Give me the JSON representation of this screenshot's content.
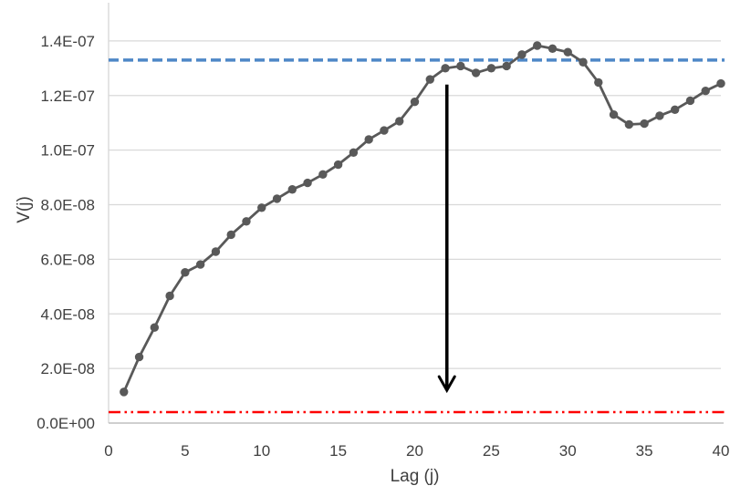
{
  "chart_data": {
    "type": "line",
    "title": "",
    "xlabel": "Lag (j)",
    "ylabel": "V(j)",
    "x": [
      1,
      2,
      3,
      4,
      5,
      6,
      7,
      8,
      9,
      10,
      11,
      12,
      13,
      14,
      15,
      16,
      17,
      18,
      19,
      20,
      21,
      22,
      23,
      24,
      25,
      26,
      27,
      28,
      29,
      30,
      31,
      32,
      33,
      34,
      35,
      36,
      37,
      38,
      39,
      40
    ],
    "series": [
      {
        "name": "V(j)",
        "marker": "circle",
        "color": "#595959",
        "values": [
          1.14e-08,
          2.42e-08,
          3.5e-08,
          4.66e-08,
          5.52e-08,
          5.81e-08,
          6.28e-08,
          6.9e-08,
          7.39e-08,
          7.89e-08,
          8.22e-08,
          8.56e-08,
          8.8e-08,
          9.11e-08,
          9.47e-08,
          9.91e-08,
          1.039e-07,
          1.072e-07,
          1.106e-07,
          1.177e-07,
          1.259e-07,
          1.3e-07,
          1.308e-07,
          1.283e-07,
          1.3e-07,
          1.308e-07,
          1.35e-07,
          1.383e-07,
          1.372e-07,
          1.359e-07,
          1.322e-07,
          1.248e-07,
          1.13e-07,
          1.094e-07,
          1.097e-07,
          1.126e-07,
          1.148e-07,
          1.181e-07,
          1.217e-07,
          1.244e-07
        ]
      }
    ],
    "xlim": [
      0,
      40
    ],
    "ylim": [
      0,
      1.54e-07
    ],
    "xticks": [
      {
        "value": 0,
        "label": "0"
      },
      {
        "value": 5,
        "label": "5"
      },
      {
        "value": 10,
        "label": "10"
      },
      {
        "value": 15,
        "label": "15"
      },
      {
        "value": 20,
        "label": "20"
      },
      {
        "value": 25,
        "label": "25"
      },
      {
        "value": 30,
        "label": "30"
      },
      {
        "value": 35,
        "label": "35"
      },
      {
        "value": 40,
        "label": "40"
      }
    ],
    "yticks": [
      {
        "value": 0,
        "label": "0.0E+00"
      },
      {
        "value": 2e-08,
        "label": "2.0E-08"
      },
      {
        "value": 4e-08,
        "label": "4.0E-08"
      },
      {
        "value": 6e-08,
        "label": "6.0E-08"
      },
      {
        "value": 8e-08,
        "label": "8.0E-08"
      },
      {
        "value": 1e-07,
        "label": "1.0E-07"
      },
      {
        "value": 1.2e-07,
        "label": "1.2E-07"
      },
      {
        "value": 1.4e-07,
        "label": "1.4E-07"
      }
    ],
    "grid": "horizontal",
    "legend": "none",
    "ref_lines": [
      {
        "name": "upper-reference-line",
        "value": 1.33e-07,
        "color": "#4e87c7",
        "style": "dashed"
      },
      {
        "name": "lower-reference-line",
        "value": 4e-09,
        "color": "#fe0000",
        "style": "dash-dot-dot"
      }
    ],
    "annotations": [
      {
        "type": "arrow",
        "name": "drop-arrow",
        "x": 22.1,
        "y_from": 1.24e-07,
        "y_to": 1.2e-08,
        "color": "#000000"
      }
    ],
    "style": {
      "gridline_color": "#d9d9d9",
      "axis_line_color": "#bfbfbf",
      "tick_label_color": "#3f3f3f",
      "tick_font_size": 17,
      "marker_radius": 4.7,
      "line_width": 2.8
    }
  }
}
